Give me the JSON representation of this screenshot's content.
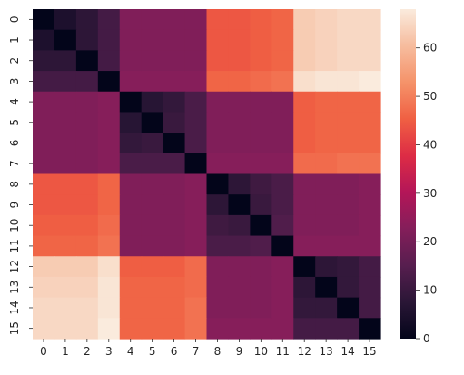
{
  "chart_data": {
    "type": "heatmap",
    "title": "",
    "xlabel": "",
    "ylabel": "",
    "x_labels": [
      "0",
      "1",
      "2",
      "3",
      "4",
      "5",
      "6",
      "7",
      "8",
      "9",
      "10",
      "11",
      "12",
      "13",
      "14",
      "15"
    ],
    "y_labels": [
      "0",
      "1",
      "2",
      "3",
      "4",
      "5",
      "6",
      "7",
      "8",
      "9",
      "10",
      "11",
      "12",
      "13",
      "14",
      "15"
    ],
    "matrix": [
      [
        0,
        5,
        8,
        12,
        22,
        22,
        22,
        22,
        44,
        44,
        45,
        46,
        63,
        64,
        65,
        65
      ],
      [
        5,
        0,
        8,
        12,
        22,
        22,
        22,
        22,
        44,
        44,
        45,
        46,
        63,
        64,
        65,
        65
      ],
      [
        8,
        8,
        0,
        12,
        22,
        22,
        22,
        22,
        44,
        44,
        45,
        46,
        63,
        64,
        65,
        65
      ],
      [
        12,
        12,
        12,
        0,
        23,
        23,
        23,
        23,
        46,
        46,
        47,
        48,
        66,
        67,
        67,
        68
      ],
      [
        22,
        22,
        22,
        23,
        0,
        7,
        9,
        13,
        22,
        22,
        22,
        22,
        45,
        46,
        46,
        46
      ],
      [
        22,
        22,
        22,
        23,
        7,
        0,
        10,
        13,
        22,
        22,
        22,
        22,
        45,
        46,
        46,
        46
      ],
      [
        22,
        22,
        22,
        23,
        9,
        10,
        0,
        13,
        22,
        22,
        22,
        22,
        45,
        46,
        46,
        46
      ],
      [
        22,
        22,
        22,
        23,
        13,
        13,
        13,
        0,
        23,
        23,
        23,
        23,
        47,
        47,
        48,
        48
      ],
      [
        44,
        44,
        44,
        46,
        22,
        22,
        22,
        23,
        0,
        8,
        11,
        13,
        22,
        22,
        22,
        23
      ],
      [
        44,
        44,
        44,
        46,
        22,
        22,
        22,
        23,
        8,
        0,
        10,
        13,
        22,
        22,
        22,
        23
      ],
      [
        45,
        45,
        45,
        47,
        22,
        22,
        22,
        23,
        11,
        10,
        0,
        14,
        22,
        22,
        22,
        23
      ],
      [
        46,
        46,
        46,
        48,
        22,
        22,
        22,
        23,
        13,
        13,
        14,
        0,
        23,
        23,
        23,
        23
      ],
      [
        63,
        63,
        63,
        66,
        45,
        45,
        45,
        47,
        22,
        22,
        22,
        23,
        0,
        8,
        9,
        12
      ],
      [
        64,
        64,
        64,
        67,
        46,
        46,
        46,
        47,
        22,
        22,
        22,
        23,
        8,
        0,
        9,
        12
      ],
      [
        65,
        65,
        65,
        67,
        46,
        46,
        46,
        48,
        22,
        22,
        22,
        23,
        9,
        9,
        0,
        12
      ],
      [
        65,
        65,
        65,
        68,
        46,
        46,
        46,
        48,
        23,
        23,
        23,
        23,
        12,
        12,
        12,
        0
      ]
    ],
    "colorbar": {
      "min": 0,
      "max": 68,
      "ticks": [
        0,
        10,
        20,
        30,
        40,
        50,
        60
      ],
      "tick_labels": [
        "0",
        "10",
        "20",
        "30",
        "40",
        "50",
        "60"
      ]
    },
    "colormap": [
      "#03051a",
      "#2a1636",
      "#571e4f",
      "#841e5a",
      "#b41658",
      "#dd2c45",
      "#f06043",
      "#f5936a",
      "#f6bc9e",
      "#faebdd"
    ],
    "grid": false,
    "legend": "colorbar-right"
  }
}
